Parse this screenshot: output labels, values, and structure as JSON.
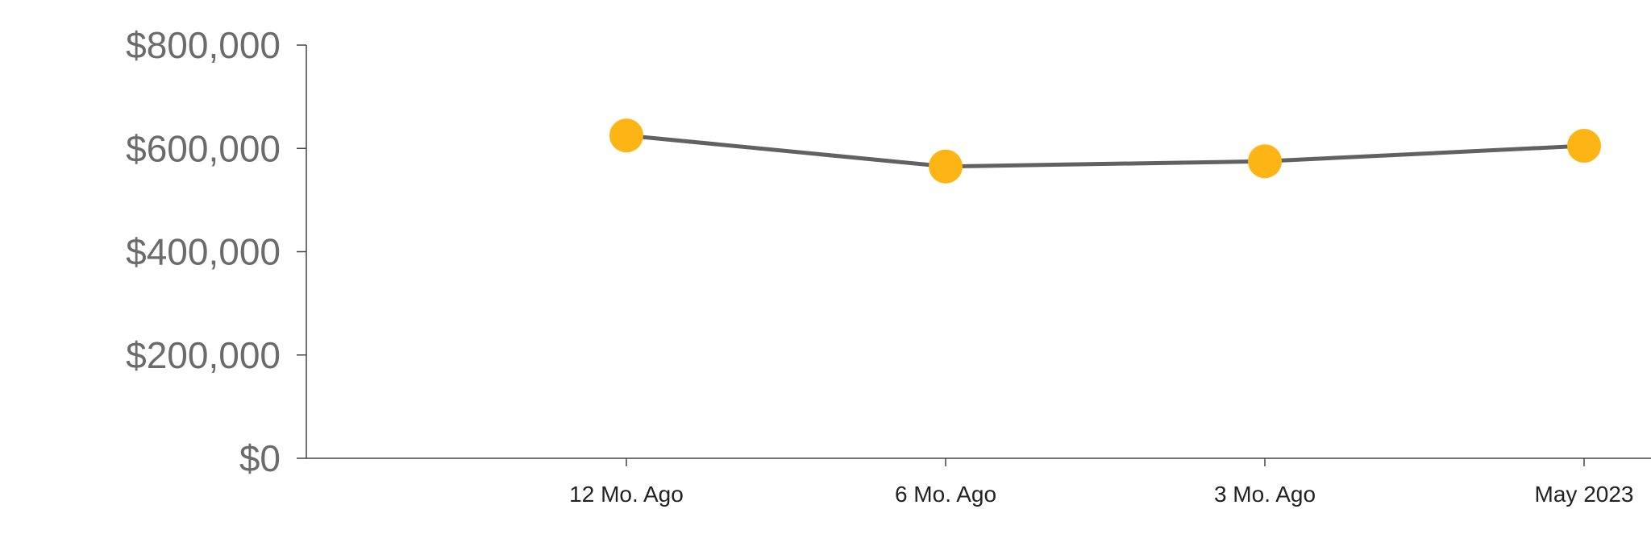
{
  "chart_data": {
    "type": "line",
    "title": "",
    "xlabel": "",
    "ylabel": "",
    "categories": [
      "12 Mo. Ago",
      "6 Mo. Ago",
      "3 Mo. Ago",
      "May 2023"
    ],
    "series": [
      {
        "values": [
          625000,
          565000,
          575000,
          605000
        ]
      }
    ],
    "ylim": [
      0,
      800000
    ],
    "y_ticks": [
      0,
      200000,
      400000,
      600000,
      800000
    ],
    "y_tick_labels": [
      "$0",
      "$200,000",
      "$400,000",
      "$600,000",
      "$800,000"
    ],
    "grid": false,
    "legend": "none",
    "colors": {
      "line": "#616161",
      "marker": "#FDB515",
      "axis": "#444444"
    }
  }
}
